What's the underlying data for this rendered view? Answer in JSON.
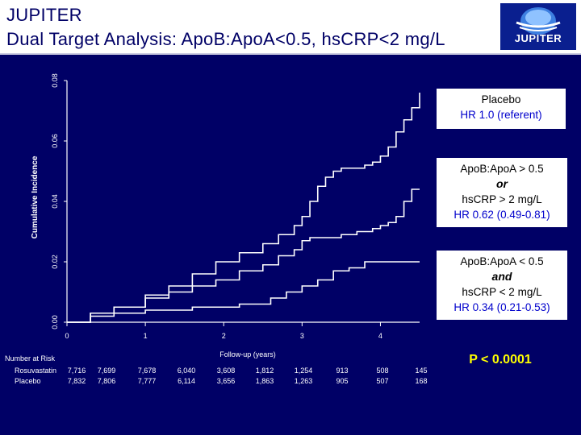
{
  "header": {
    "title_line1": "JUPITER",
    "title_line2": "Dual Target Analysis: ApoB:ApoA<0.5, hsCRP<2 mg/L",
    "logo_text": "JUPITER"
  },
  "colors": {
    "background": "#000066",
    "curve": "#ffffff",
    "hr_text": "#0000cc",
    "p_value": "#ffff00"
  },
  "legend_boxes": [
    {
      "line1": "Placebo",
      "line2": "",
      "line3": "",
      "hr": "HR 1.0 (referent)"
    },
    {
      "line1": "ApoB:ApoA > 0.5",
      "line2": "or",
      "line3": "hsCRP > 2 mg/L",
      "hr": "HR 0.62 (0.49-0.81)"
    },
    {
      "line1": "ApoB:ApoA < 0.5",
      "line2": "and",
      "line3": "hsCRP < 2 mg/L",
      "hr": "HR 0.34 (0.21-0.53)"
    }
  ],
  "p_value": "P < 0.0001",
  "number_at_risk": {
    "title": "Number at Risk",
    "rows": [
      {
        "label": "Rosuvastatin",
        "values": [
          "7,716",
          "7,699",
          "7,678",
          "6,040",
          "3,608",
          "1,812",
          "1,254",
          "913",
          "508",
          "145"
        ]
      },
      {
        "label": "Placebo",
        "values": [
          "7,832",
          "7,806",
          "7,777",
          "6,114",
          "3,656",
          "1,863",
          "1,263",
          "905",
          "507",
          "168"
        ]
      }
    ]
  },
  "chart_data": {
    "type": "line",
    "title": "",
    "xlabel": "Follow-up (years)",
    "ylabel": "Cumulative Incidence",
    "xlim": [
      0,
      4.5
    ],
    "ylim": [
      0,
      0.08
    ],
    "x_ticks": [
      "0",
      "1",
      "2",
      "3",
      "4"
    ],
    "y_ticks": [
      "0.00",
      "0.02",
      "0.04",
      "0.06",
      "0.08"
    ],
    "grid": false,
    "legend": "right",
    "series": [
      {
        "name": "Placebo",
        "x": [
          0,
          0.3,
          0.6,
          1.0,
          1.3,
          1.6,
          1.9,
          2.2,
          2.5,
          2.7,
          2.9,
          3.0,
          3.1,
          3.2,
          3.3,
          3.4,
          3.5,
          3.6,
          3.8,
          3.9,
          4.0,
          4.1,
          4.2,
          4.3,
          4.4,
          4.5
        ],
        "y": [
          0,
          0.003,
          0.005,
          0.009,
          0.012,
          0.016,
          0.02,
          0.023,
          0.026,
          0.029,
          0.032,
          0.035,
          0.04,
          0.045,
          0.048,
          0.05,
          0.051,
          0.051,
          0.052,
          0.053,
          0.055,
          0.058,
          0.063,
          0.067,
          0.071,
          0.076
        ]
      },
      {
        "name": "ApoB:ApoA > 0.5 or hsCRP > 2 mg/L",
        "x": [
          0,
          0.3,
          0.6,
          1.0,
          1.3,
          1.6,
          1.9,
          2.2,
          2.5,
          2.7,
          2.9,
          3.0,
          3.1,
          3.3,
          3.5,
          3.7,
          3.9,
          4.0,
          4.1,
          4.2,
          4.3,
          4.4,
          4.5
        ],
        "y": [
          0,
          0.003,
          0.005,
          0.008,
          0.01,
          0.012,
          0.014,
          0.017,
          0.019,
          0.022,
          0.024,
          0.027,
          0.028,
          0.028,
          0.029,
          0.03,
          0.031,
          0.032,
          0.033,
          0.035,
          0.04,
          0.044,
          0.044
        ]
      },
      {
        "name": "ApoB:ApoA < 0.5 and hsCRP < 2 mg/L",
        "x": [
          0,
          0.3,
          0.6,
          1.0,
          1.3,
          1.6,
          1.9,
          2.2,
          2.4,
          2.6,
          2.8,
          3.0,
          3.2,
          3.4,
          3.6,
          3.8,
          4.0,
          4.5
        ],
        "y": [
          0,
          0.002,
          0.003,
          0.004,
          0.004,
          0.005,
          0.005,
          0.006,
          0.006,
          0.008,
          0.01,
          0.012,
          0.014,
          0.017,
          0.018,
          0.02,
          0.02,
          0.02
        ]
      }
    ]
  }
}
